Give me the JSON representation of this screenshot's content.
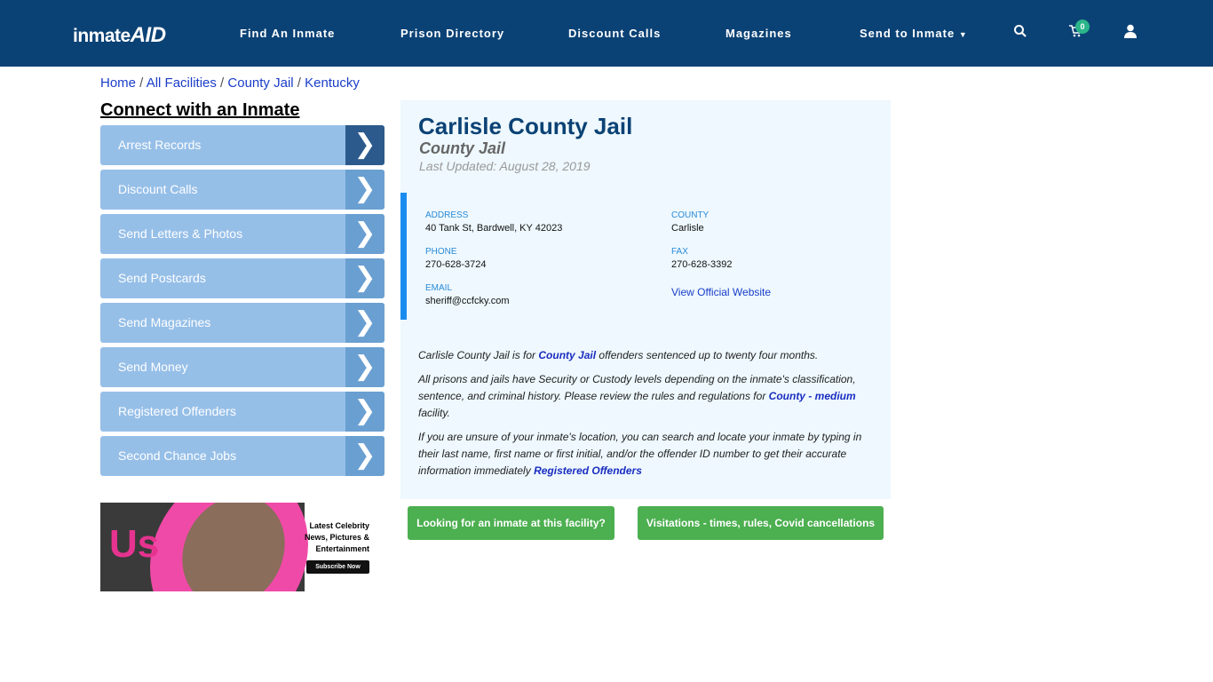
{
  "nav": {
    "logo_text": "inmate",
    "logo_accent": "AID",
    "items": [
      "Find An Inmate",
      "Prison Directory",
      "Discount Calls",
      "Magazines",
      "Send to Inmate"
    ],
    "cart_count": "0"
  },
  "breadcrumb": [
    "Home",
    "All Facilities",
    "County Jail",
    "Kentucky"
  ],
  "sidebar": {
    "title": "Connect with an Inmate",
    "items": [
      "Arrest Records",
      "Discount Calls",
      "Send Letters & Photos",
      "Send Postcards",
      "Send Magazines",
      "Send Money",
      "Registered Offenders",
      "Second Chance Jobs"
    ]
  },
  "ad": {
    "brand": "Us",
    "line1": "Latest Celebrity",
    "line2": "News, Pictures &",
    "line3": "Entertainment",
    "cta": "Subscribe Now"
  },
  "facility": {
    "name": "Carlisle County Jail",
    "type": "County Jail",
    "updated": "Last Updated: August 28, 2019",
    "address_label": "ADDRESS",
    "address": "40 Tank St, Bardwell, KY 42023",
    "county_label": "COUNTY",
    "county": "Carlisle",
    "phone_label": "PHONE",
    "phone": "270-628-3724",
    "fax_label": "FAX",
    "fax": "270-628-3392",
    "email_label": "EMAIL",
    "email": "sheriff@ccfcky.com",
    "website_link": "View Official Website"
  },
  "description": {
    "p1a": "Carlisle County Jail is for ",
    "p1link": "County Jail",
    "p1b": " offenders sentenced up to twenty four months.",
    "p2a": "All prisons and jails have Security or Custody levels depending on the inmate's classification, sentence, and criminal history. Please review the rules and regulations for ",
    "p2link": "County - medium",
    "p2b": " facility.",
    "p3a": "If you are unsure of your inmate's location, you can search and locate your inmate by typing in their last name, first name or first initial, and/or the offender ID number to get their accurate information immediately ",
    "p3link": "Registered Offenders"
  },
  "buttons": {
    "find": "Looking for an inmate at this facility?",
    "visits": "Visitations - times, rules, Covid cancellations"
  },
  "colors": {
    "nav": "#0b4275",
    "accent": "#1a8cf0",
    "green": "#4caf50"
  }
}
